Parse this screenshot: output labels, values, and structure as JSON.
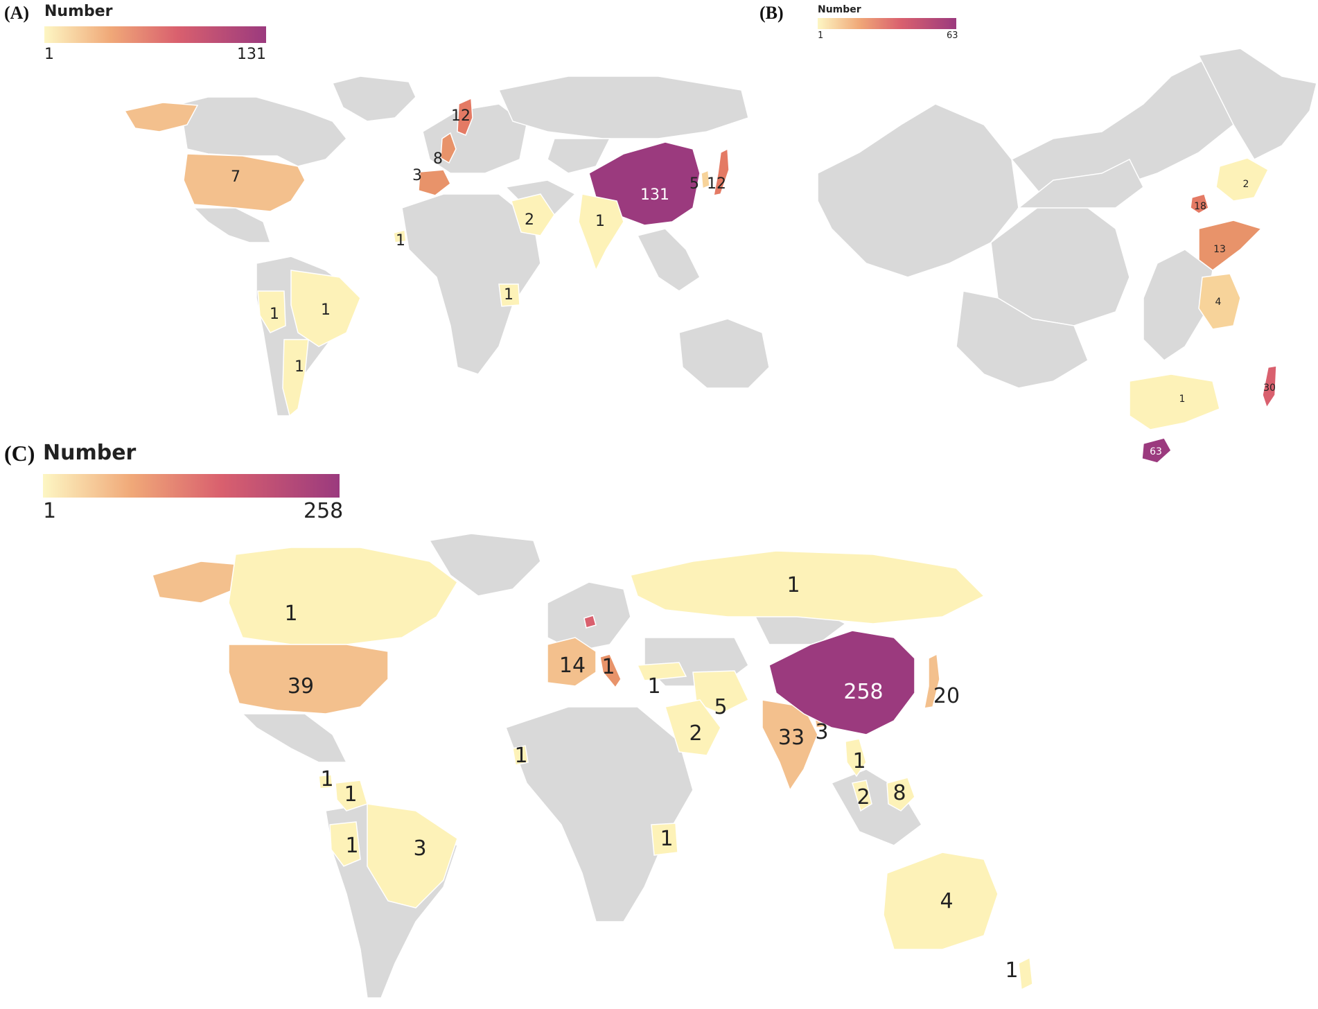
{
  "colors": {
    "low": "#fdf6c3",
    "mid": "#e8936a",
    "high": "#9b3a7e",
    "nodata": "#d9d9d9",
    "water": "#ffffff"
  },
  "panels": [
    {
      "id": "A",
      "label": "(A)",
      "legend": {
        "title": "Number",
        "min": "1",
        "max": "131"
      },
      "values": {
        "usa": "7",
        "uk": "8",
        "spain": "3",
        "norway": "12",
        "china": "131",
        "korea": "5",
        "japan": "12",
        "saudi": "2",
        "india": "1",
        "senegal": "1",
        "peru": "1",
        "brazil": "1",
        "argentina": "1",
        "tanzania": "1"
      }
    },
    {
      "id": "B",
      "label": "(B)",
      "legend": {
        "title": "Number",
        "min": "1",
        "max": "63"
      },
      "values": {
        "liaoning": "2",
        "beijing": "18",
        "shandong": "13",
        "anhui": "4",
        "guangdong": "1",
        "taiwan": "30",
        "hainan": "63"
      }
    },
    {
      "id": "C",
      "label": "(C)",
      "legend": {
        "title": "Number",
        "min": "1",
        "max": "258"
      },
      "values": {
        "canada": "1",
        "usa": "39",
        "russia": "1",
        "europe": "14",
        "italy": "1",
        "turkey": "1",
        "iran": "5",
        "saudi": "2",
        "india": "33",
        "bangladesh": "3",
        "china": "258",
        "japan": "20",
        "thailand": "1",
        "malaysia": "2",
        "borneo": "8",
        "senegal": "1",
        "panama": "1",
        "colombia": "1",
        "peru": "1",
        "brazil": "3",
        "tanzania": "1",
        "australia": "4",
        "newzealand": "1"
      }
    }
  ]
}
